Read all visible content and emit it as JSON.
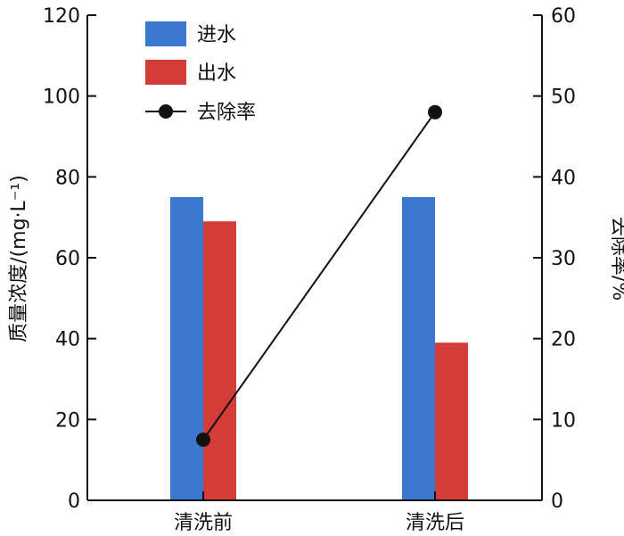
{
  "chart_data": {
    "type": "bar",
    "categories": [
      "清洗前",
      "清洗后"
    ],
    "series": [
      {
        "name": "进水",
        "axis": "left",
        "kind": "bar",
        "values": [
          75,
          75
        ],
        "color": "#3b78cf"
      },
      {
        "name": "出水",
        "axis": "left",
        "kind": "bar",
        "values": [
          69,
          39
        ],
        "color": "#d43c38"
      },
      {
        "name": "去除率",
        "axis": "right",
        "kind": "line",
        "values": [
          7.5,
          48
        ],
        "color": "#111111"
      }
    ],
    "ylabel_left": "质量浓度/(mg·L⁻¹)",
    "ylabel_right": "去除率/%",
    "ylim_left": [
      0,
      120
    ],
    "ylim_right": [
      0,
      60
    ],
    "yticks_left": [
      "0",
      "20",
      "40",
      "60",
      "80",
      "100",
      "120"
    ],
    "yticks_right": [
      "0",
      "10",
      "20",
      "30",
      "40",
      "50",
      "60"
    ],
    "legend_position": "top-left",
    "grid": false
  }
}
